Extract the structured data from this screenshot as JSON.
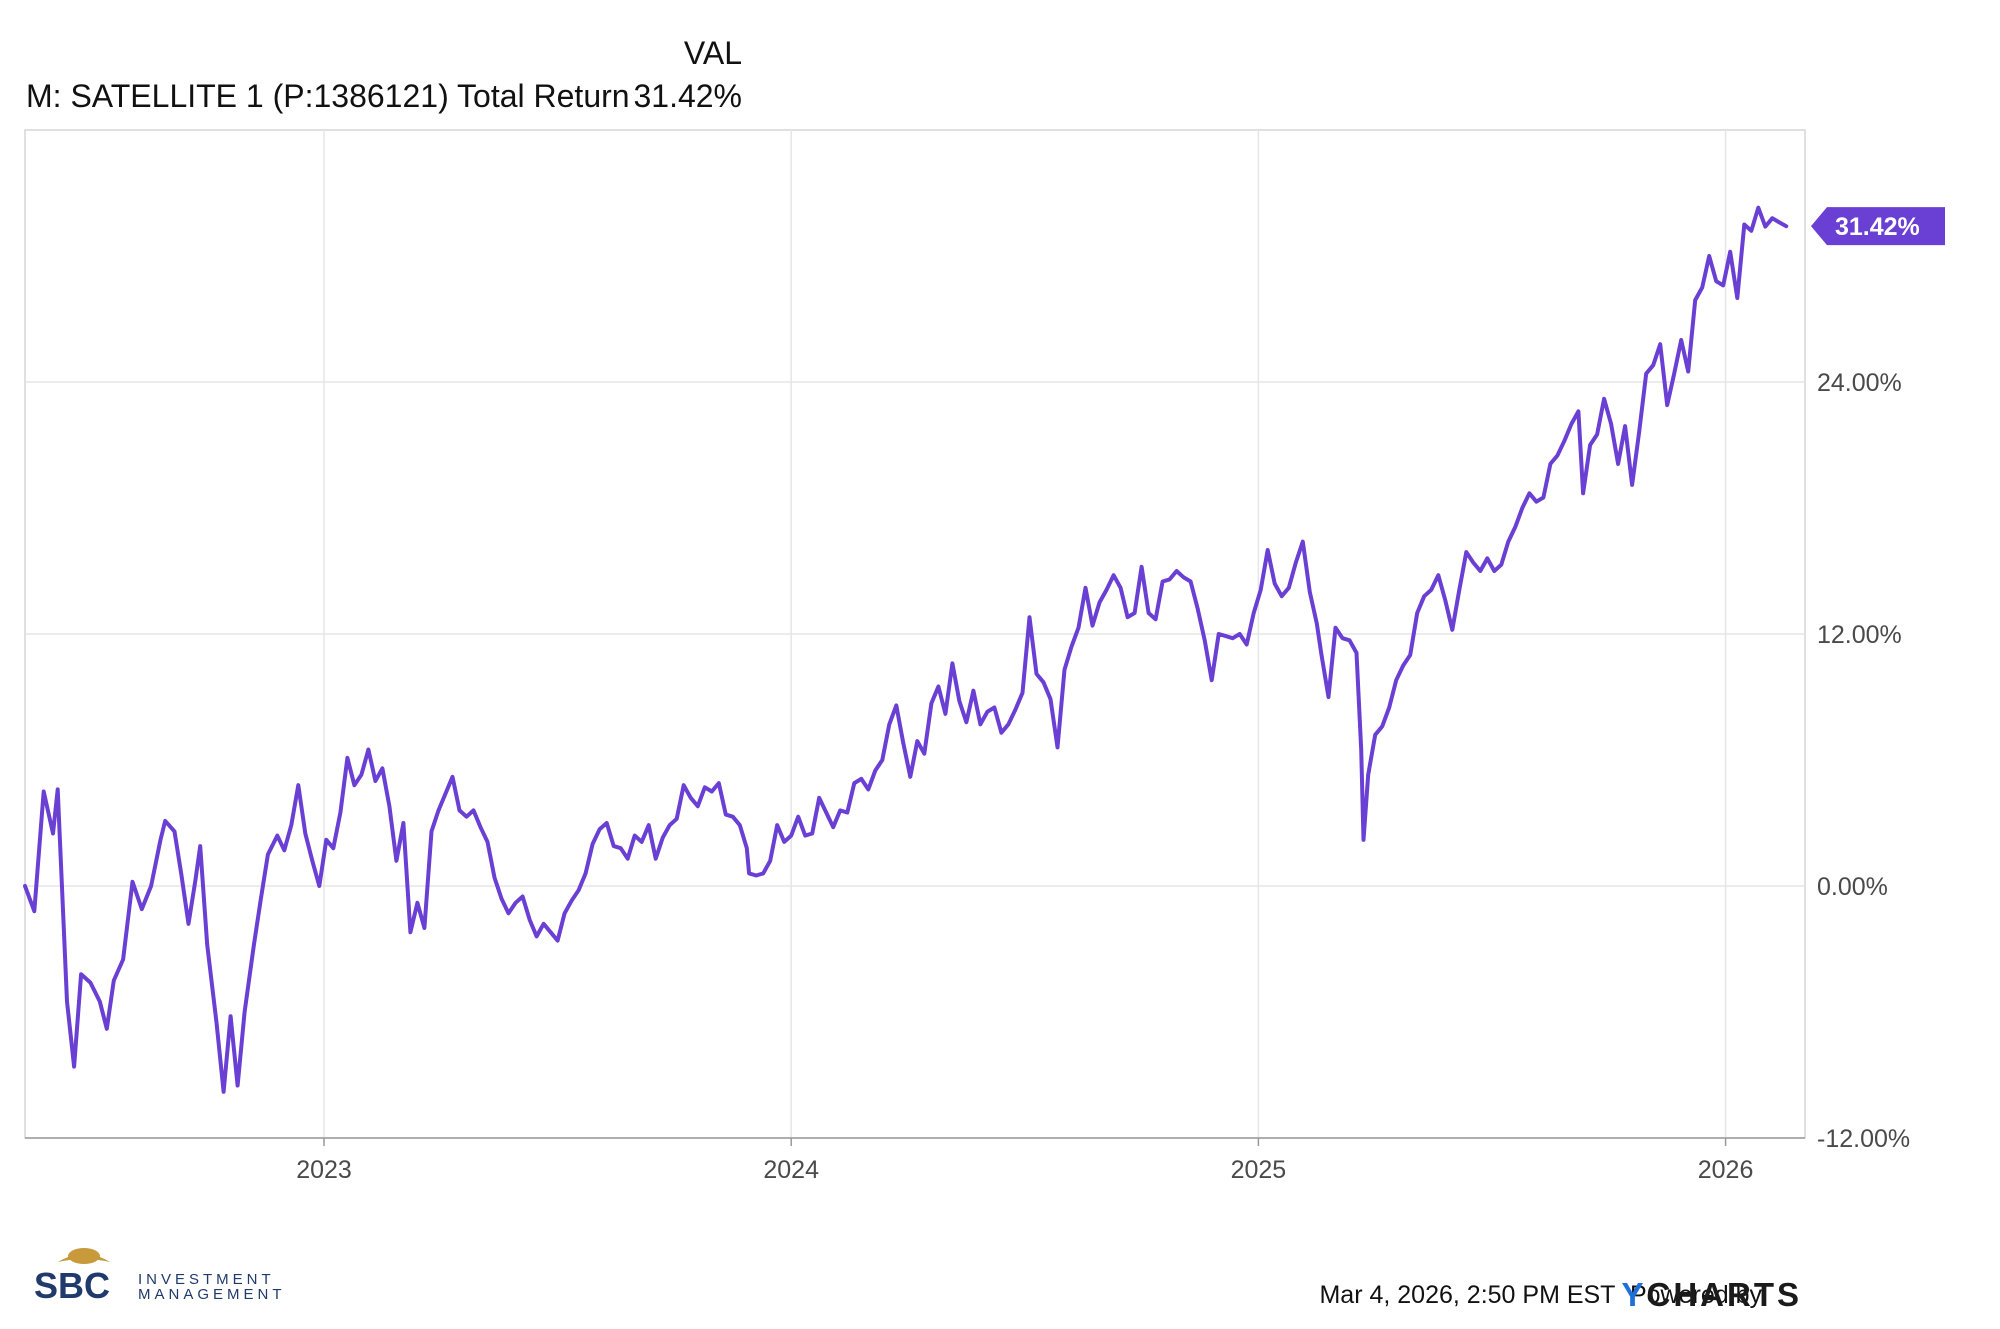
{
  "chart_data": {
    "type": "line",
    "title": "",
    "xlabel": "",
    "ylabel": "",
    "legend": {
      "column_header": "VAL",
      "series_label": "M: SATELLITE 1 (P:1386121) Total Return",
      "series_value": "31.42%"
    },
    "x_ticks": [
      "2023",
      "2024",
      "2025",
      "2026"
    ],
    "y_ticks": [
      "-12.00%",
      "0.00%",
      "12.00%",
      "24.00%"
    ],
    "ylim": [
      -12,
      36
    ],
    "xlim": [
      2022.36,
      2026.17
    ],
    "grid": true,
    "series": [
      {
        "name": "M: SATELLITE 1 (P:1386121) Total Return",
        "color": "#6a3fd3",
        "last_value_label": "31.42%",
        "points": [
          [
            2022.36,
            0.0
          ],
          [
            2022.38,
            -1.2
          ],
          [
            2022.4,
            4.5
          ],
          [
            2022.42,
            2.5
          ],
          [
            2022.43,
            4.6
          ],
          [
            2022.45,
            -5.5
          ],
          [
            2022.465,
            -8.6
          ],
          [
            2022.48,
            -4.2
          ],
          [
            2022.5,
            -4.6
          ],
          [
            2022.52,
            -5.5
          ],
          [
            2022.535,
            -6.8
          ],
          [
            2022.55,
            -4.5
          ],
          [
            2022.57,
            -3.5
          ],
          [
            2022.59,
            0.2
          ],
          [
            2022.61,
            -1.1
          ],
          [
            2022.63,
            0.0
          ],
          [
            2022.65,
            2.2
          ],
          [
            2022.66,
            3.1
          ],
          [
            2022.68,
            2.6
          ],
          [
            2022.695,
            0.5
          ],
          [
            2022.71,
            -1.8
          ],
          [
            2022.725,
            0.3
          ],
          [
            2022.735,
            1.9
          ],
          [
            2022.75,
            -2.8
          ],
          [
            2022.77,
            -6.5
          ],
          [
            2022.785,
            -9.8
          ],
          [
            2022.8,
            -6.2
          ],
          [
            2022.815,
            -9.5
          ],
          [
            2022.83,
            -6.0
          ],
          [
            2022.85,
            -2.8
          ],
          [
            2022.865,
            -0.6
          ],
          [
            2022.88,
            1.5
          ],
          [
            2022.9,
            2.4
          ],
          [
            2022.915,
            1.7
          ],
          [
            2022.93,
            2.9
          ],
          [
            2022.945,
            4.8
          ],
          [
            2022.96,
            2.5
          ],
          [
            2022.975,
            1.2
          ],
          [
            2022.99,
            0.0
          ],
          [
            2023.005,
            2.2
          ],
          [
            2023.02,
            1.8
          ],
          [
            2023.035,
            3.5
          ],
          [
            2023.05,
            6.1
          ],
          [
            2023.065,
            4.8
          ],
          [
            2023.08,
            5.3
          ],
          [
            2023.095,
            6.5
          ],
          [
            2023.11,
            5.0
          ],
          [
            2023.125,
            5.6
          ],
          [
            2023.14,
            3.8
          ],
          [
            2023.155,
            1.2
          ],
          [
            2023.17,
            3.0
          ],
          [
            2023.185,
            -2.2
          ],
          [
            2023.2,
            -0.8
          ],
          [
            2023.215,
            -2.0
          ],
          [
            2023.23,
            2.6
          ],
          [
            2023.245,
            3.6
          ],
          [
            2023.26,
            4.4
          ],
          [
            2023.275,
            5.2
          ],
          [
            2023.29,
            3.6
          ],
          [
            2023.305,
            3.3
          ],
          [
            2023.32,
            3.6
          ],
          [
            2023.335,
            2.8
          ],
          [
            2023.35,
            2.1
          ],
          [
            2023.365,
            0.4
          ],
          [
            2023.38,
            -0.6
          ],
          [
            2023.395,
            -1.3
          ],
          [
            2023.41,
            -0.8
          ],
          [
            2023.425,
            -0.5
          ],
          [
            2023.44,
            -1.6
          ],
          [
            2023.455,
            -2.4
          ],
          [
            2023.47,
            -1.8
          ],
          [
            2023.485,
            -2.2
          ],
          [
            2023.5,
            -2.6
          ],
          [
            2023.515,
            -1.3
          ],
          [
            2023.53,
            -0.7
          ],
          [
            2023.545,
            -0.2
          ],
          [
            2023.56,
            0.6
          ],
          [
            2023.575,
            2.0
          ],
          [
            2023.59,
            2.7
          ],
          [
            2023.605,
            3.0
          ],
          [
            2023.62,
            1.9
          ],
          [
            2023.635,
            1.8
          ],
          [
            2023.65,
            1.3
          ],
          [
            2023.665,
            2.4
          ],
          [
            2023.68,
            2.1
          ],
          [
            2023.695,
            2.9
          ],
          [
            2023.71,
            1.3
          ],
          [
            2023.725,
            2.3
          ],
          [
            2023.74,
            2.9
          ],
          [
            2023.755,
            3.2
          ],
          [
            2023.77,
            4.8
          ],
          [
            2023.785,
            4.2
          ],
          [
            2023.8,
            3.8
          ],
          [
            2023.815,
            4.7
          ],
          [
            2023.83,
            4.5
          ],
          [
            2023.845,
            4.9
          ],
          [
            2023.86,
            3.4
          ],
          [
            2023.875,
            3.3
          ],
          [
            2023.89,
            2.9
          ],
          [
            2023.905,
            1.8
          ],
          [
            2023.91,
            0.6
          ],
          [
            2023.925,
            0.5
          ],
          [
            2023.94,
            0.6
          ],
          [
            2023.955,
            1.2
          ],
          [
            2023.97,
            2.9
          ],
          [
            2023.985,
            2.1
          ],
          [
            2024.0,
            2.4
          ],
          [
            2024.015,
            3.3
          ],
          [
            2024.03,
            2.4
          ],
          [
            2024.045,
            2.5
          ],
          [
            2024.06,
            4.2
          ],
          [
            2024.075,
            3.5
          ],
          [
            2024.09,
            2.8
          ],
          [
            2024.105,
            3.6
          ],
          [
            2024.12,
            3.5
          ],
          [
            2024.135,
            4.9
          ],
          [
            2024.15,
            5.1
          ],
          [
            2024.165,
            4.6
          ],
          [
            2024.18,
            5.5
          ],
          [
            2024.195,
            6.0
          ],
          [
            2024.21,
            7.7
          ],
          [
            2024.225,
            8.6
          ],
          [
            2024.24,
            6.8
          ],
          [
            2024.255,
            5.2
          ],
          [
            2024.27,
            6.9
          ],
          [
            2024.285,
            6.3
          ],
          [
            2024.3,
            8.7
          ],
          [
            2024.315,
            9.5
          ],
          [
            2024.33,
            8.2
          ],
          [
            2024.345,
            10.6
          ],
          [
            2024.36,
            8.8
          ],
          [
            2024.375,
            7.8
          ],
          [
            2024.39,
            9.3
          ],
          [
            2024.405,
            7.7
          ],
          [
            2024.42,
            8.3
          ],
          [
            2024.435,
            8.5
          ],
          [
            2024.45,
            7.3
          ],
          [
            2024.465,
            7.7
          ],
          [
            2024.48,
            8.4
          ],
          [
            2024.495,
            9.2
          ],
          [
            2024.51,
            12.8
          ],
          [
            2024.525,
            10.1
          ],
          [
            2024.54,
            9.7
          ],
          [
            2024.555,
            8.9
          ],
          [
            2024.57,
            6.6
          ],
          [
            2024.585,
            10.3
          ],
          [
            2024.6,
            11.4
          ],
          [
            2024.615,
            12.3
          ],
          [
            2024.63,
            14.2
          ],
          [
            2024.645,
            12.4
          ],
          [
            2024.66,
            13.5
          ],
          [
            2024.675,
            14.1
          ],
          [
            2024.69,
            14.8
          ],
          [
            2024.705,
            14.2
          ],
          [
            2024.72,
            12.8
          ],
          [
            2024.735,
            13.0
          ],
          [
            2024.75,
            15.2
          ],
          [
            2024.765,
            13.0
          ],
          [
            2024.78,
            12.7
          ],
          [
            2024.795,
            14.5
          ],
          [
            2024.81,
            14.6
          ],
          [
            2024.825,
            15.0
          ],
          [
            2024.84,
            14.7
          ],
          [
            2024.855,
            14.5
          ],
          [
            2024.87,
            13.2
          ],
          [
            2024.885,
            11.7
          ],
          [
            2024.9,
            9.8
          ],
          [
            2024.915,
            12.0
          ],
          [
            2024.93,
            11.9
          ],
          [
            2024.945,
            11.8
          ],
          [
            2024.96,
            12.0
          ],
          [
            2024.975,
            11.5
          ],
          [
            2024.99,
            13.0
          ],
          [
            2025.005,
            14.1
          ],
          [
            2025.02,
            16.0
          ],
          [
            2025.035,
            14.4
          ],
          [
            2025.05,
            13.8
          ],
          [
            2025.065,
            14.2
          ],
          [
            2025.08,
            15.4
          ],
          [
            2025.095,
            16.4
          ],
          [
            2025.11,
            14.0
          ],
          [
            2025.125,
            12.5
          ],
          [
            2025.135,
            11.0
          ],
          [
            2025.15,
            9.0
          ],
          [
            2025.165,
            12.3
          ],
          [
            2025.18,
            11.8
          ],
          [
            2025.195,
            11.7
          ],
          [
            2025.21,
            11.1
          ],
          [
            2025.22,
            6.5
          ],
          [
            2025.225,
            2.2
          ],
          [
            2025.235,
            5.3
          ],
          [
            2025.25,
            7.2
          ],
          [
            2025.265,
            7.6
          ],
          [
            2025.28,
            8.5
          ],
          [
            2025.295,
            9.8
          ],
          [
            2025.31,
            10.5
          ],
          [
            2025.325,
            11.0
          ],
          [
            2025.34,
            13.0
          ],
          [
            2025.355,
            13.8
          ],
          [
            2025.37,
            14.1
          ],
          [
            2025.385,
            14.8
          ],
          [
            2025.4,
            13.6
          ],
          [
            2025.415,
            12.2
          ],
          [
            2025.43,
            14.1
          ],
          [
            2025.445,
            15.9
          ],
          [
            2025.46,
            15.4
          ],
          [
            2025.475,
            15.0
          ],
          [
            2025.49,
            15.6
          ],
          [
            2025.505,
            15.0
          ],
          [
            2025.52,
            15.3
          ],
          [
            2025.535,
            16.4
          ],
          [
            2025.55,
            17.1
          ],
          [
            2025.565,
            18.0
          ],
          [
            2025.58,
            18.7
          ],
          [
            2025.595,
            18.3
          ],
          [
            2025.61,
            18.5
          ],
          [
            2025.625,
            20.1
          ],
          [
            2025.64,
            20.5
          ],
          [
            2025.655,
            21.2
          ],
          [
            2025.67,
            22.0
          ],
          [
            2025.685,
            22.6
          ],
          [
            2025.695,
            18.7
          ],
          [
            2025.71,
            21.0
          ],
          [
            2025.725,
            21.5
          ],
          [
            2025.74,
            23.2
          ],
          [
            2025.755,
            22.0
          ],
          [
            2025.77,
            20.1
          ],
          [
            2025.785,
            21.9
          ],
          [
            2025.8,
            19.1
          ],
          [
            2025.815,
            21.6
          ],
          [
            2025.83,
            24.4
          ],
          [
            2025.845,
            24.8
          ],
          [
            2025.86,
            25.8
          ],
          [
            2025.875,
            22.9
          ],
          [
            2025.89,
            24.4
          ],
          [
            2025.905,
            26.0
          ],
          [
            2025.92,
            24.5
          ],
          [
            2025.935,
            27.9
          ],
          [
            2025.95,
            28.5
          ],
          [
            2025.965,
            30.0
          ],
          [
            2025.98,
            28.8
          ],
          [
            2025.995,
            28.6
          ],
          [
            2026.01,
            30.2
          ],
          [
            2026.025,
            28.0
          ],
          [
            2026.04,
            31.5
          ],
          [
            2026.055,
            31.2
          ],
          [
            2026.07,
            32.3
          ],
          [
            2026.085,
            31.4
          ],
          [
            2026.1,
            31.8
          ],
          [
            2026.115,
            31.6
          ],
          [
            2026.13,
            31.42
          ]
        ]
      }
    ]
  },
  "footer": {
    "timestamp": "Mar 4, 2026, 2:50 PM EST",
    "powered_by": "Powered by",
    "brand": "YCHARTS",
    "brand_y": "Y",
    "brand_rest": "CHARTS",
    "logo_letters": "SBC",
    "logo_line1": "INVESTMENT",
    "logo_line2": "MANAGEMENT"
  },
  "colors": {
    "series": "#6a3fd3",
    "grid": "#e6e6e6",
    "axis": "#999999",
    "tick_text": "#4a4a4a",
    "brand_blue": "#1e6fd9",
    "logo_navy": "#1f3a6b",
    "logo_gold": "#c89a3c"
  }
}
